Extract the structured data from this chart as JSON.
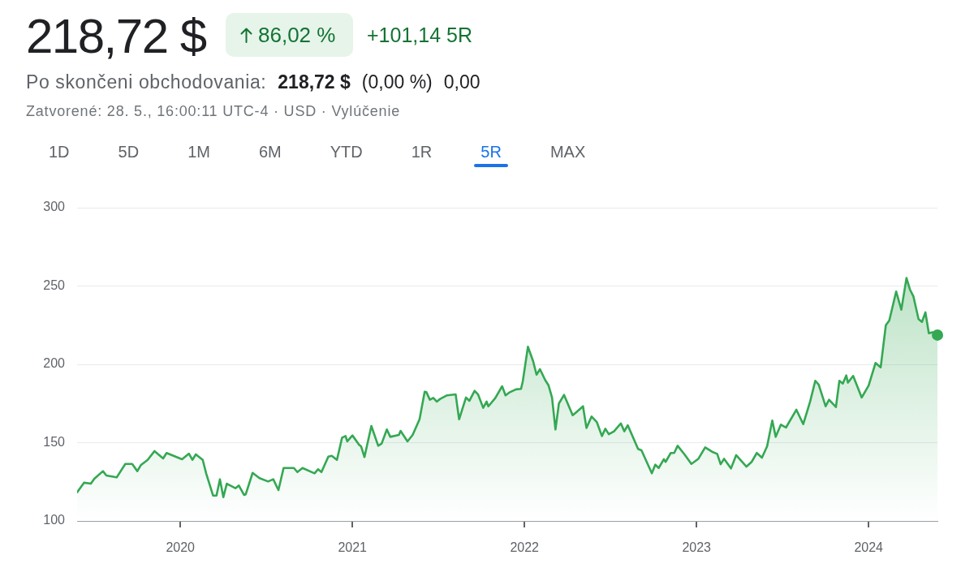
{
  "chart_data": {
    "type": "area",
    "title": "218,72 $",
    "annotations": [
      "86,02 %",
      "+101,14 5R",
      "Po skončeni obchodovania:",
      "218,72 $",
      "(0,00 %)",
      "0,00",
      "Zatvorené: 28. 5., 16:00:11 UTC-4 · USD · Vylúčenie",
      "1D",
      "5D",
      "1M",
      "6M",
      "YTD",
      "1R",
      "5R",
      "MAX"
    ],
    "xlim": [
      2019.4,
      2024.4
    ],
    "xticks": [
      2020,
      2021,
      2022,
      2023,
      2024
    ],
    "ylim": [
      100,
      300
    ],
    "yticks": [
      100,
      150,
      200,
      250,
      300
    ],
    "grid": "y",
    "series": [
      {
        "color": "#34a853",
        "x": [
          2019.4,
          2019.44,
          2019.48,
          2019.5,
          2019.55,
          2019.57,
          2019.63,
          2019.68,
          2019.72,
          2019.75,
          2019.77,
          2019.81,
          2019.85,
          2019.9,
          2019.92,
          2020.01,
          2020.05,
          2020.07,
          2020.09,
          2020.13,
          2020.15,
          2020.19,
          2020.21,
          2020.23,
          2020.25,
          2020.27,
          2020.32,
          2020.34,
          2020.37,
          2020.38,
          2020.42,
          2020.46,
          2020.51,
          2020.54,
          2020.57,
          2020.6,
          2020.66,
          2020.68,
          2020.71,
          2020.78,
          2020.8,
          2020.82,
          2020.86,
          2020.88,
          2020.91,
          2020.94,
          2020.96,
          2020.97,
          2021.0,
          2021.04,
          2021.05,
          2021.07,
          2021.11,
          2021.15,
          2021.17,
          2021.2,
          2021.22,
          2021.27,
          2021.28,
          2021.32,
          2021.35,
          2021.39,
          2021.42,
          2021.43,
          2021.45,
          2021.47,
          2021.49,
          2021.51,
          2021.55,
          2021.6,
          2021.62,
          2021.66,
          2021.68,
          2021.71,
          2021.73,
          2021.76,
          2021.78,
          2021.79,
          2021.83,
          2021.87,
          2021.89,
          2021.91,
          2021.95,
          2021.98,
          2021.99,
          2022.02,
          2022.05,
          2022.07,
          2022.09,
          2022.12,
          2022.14,
          2022.16,
          2022.18,
          2022.2,
          2022.23,
          2022.28,
          2022.3,
          2022.34,
          2022.36,
          2022.39,
          2022.42,
          2022.45,
          2022.47,
          2022.49,
          2022.52,
          2022.56,
          2022.58,
          2022.6,
          2022.66,
          2022.68,
          2022.74,
          2022.76,
          2022.78,
          2022.81,
          2022.82,
          2022.85,
          2022.87,
          2022.89,
          2022.93,
          2022.97,
          2023.01,
          2023.05,
          2023.09,
          2023.12,
          2023.14,
          2023.16,
          2023.2,
          2023.23,
          2023.29,
          2023.32,
          2023.35,
          2023.38,
          2023.41,
          2023.44,
          2023.46,
          2023.49,
          2023.52,
          2023.58,
          2023.62,
          2023.66,
          2023.69,
          2023.71,
          2023.75,
          2023.77,
          2023.81,
          2023.83,
          2023.85,
          2023.87,
          2023.88,
          2023.91,
          2023.96,
          2024.0,
          2024.04,
          2024.07,
          2024.1,
          2024.12,
          2024.16,
          2024.19,
          2024.22,
          2024.24,
          2024.26,
          2024.29,
          2024.31,
          2024.33,
          2024.35,
          2024.37,
          2024.4
        ],
        "values": [
          118.3,
          124.4,
          123.8,
          126.9,
          131.8,
          129,
          127.8,
          136.4,
          136.4,
          131.8,
          135.6,
          139,
          144.6,
          139.9,
          143.4,
          139.4,
          143,
          139,
          142.5,
          139,
          130.4,
          116.2,
          116.2,
          126.6,
          115.2,
          123.8,
          120.9,
          122.6,
          116.6,
          117,
          130.7,
          127.3,
          125.2,
          126.6,
          119.7,
          133.8,
          133.8,
          131.2,
          133.8,
          130.4,
          133,
          131.2,
          141.1,
          141.6,
          139,
          153.2,
          154.2,
          150.8,
          154.6,
          148.5,
          147.7,
          140.8,
          160.6,
          148,
          149.4,
          158.4,
          153.7,
          154.9,
          157.5,
          150.8,
          154.9,
          164.9,
          182.5,
          182.2,
          177.4,
          178.6,
          176.2,
          177.9,
          180.2,
          180.8,
          164.9,
          178.8,
          176.7,
          183.1,
          180.8,
          172.2,
          176.2,
          173.2,
          178.4,
          186,
          180.2,
          181.9,
          184,
          184.3,
          189.1,
          211.2,
          202.1,
          193.4,
          196.9,
          190,
          186.5,
          178.8,
          158.4,
          175,
          180.5,
          167.5,
          169.3,
          173.2,
          159.4,
          166.7,
          163.2,
          154.2,
          158.9,
          155.4,
          157.2,
          162.3,
          157.2,
          161.1,
          146,
          145.1,
          130.4,
          135.9,
          133.8,
          139.4,
          137.7,
          143.4,
          143.4,
          148,
          142.5,
          136.4,
          139.6,
          147,
          144.2,
          142.8,
          136.2,
          139.7,
          133.5,
          142,
          134.7,
          137.7,
          143.4,
          140.4,
          147.7,
          164.1,
          153.7,
          161.5,
          159.7,
          171,
          161.8,
          176.2,
          189.5,
          187,
          173.2,
          177.4,
          172.7,
          189.5,
          187.7,
          192.9,
          188.3,
          192.6,
          178.8,
          186.5,
          200.9,
          198.1,
          225,
          228,
          246.5,
          234.9,
          255.1,
          247.8,
          243.5,
          228.9,
          227.1,
          233.2,
          219.8,
          220.5,
          218.7
        ]
      },
      {
        "type": "scatter",
        "color": "#34a853",
        "marker": "circle",
        "x": [
          2024.4
        ],
        "values": [
          218.7
        ]
      }
    ]
  }
}
